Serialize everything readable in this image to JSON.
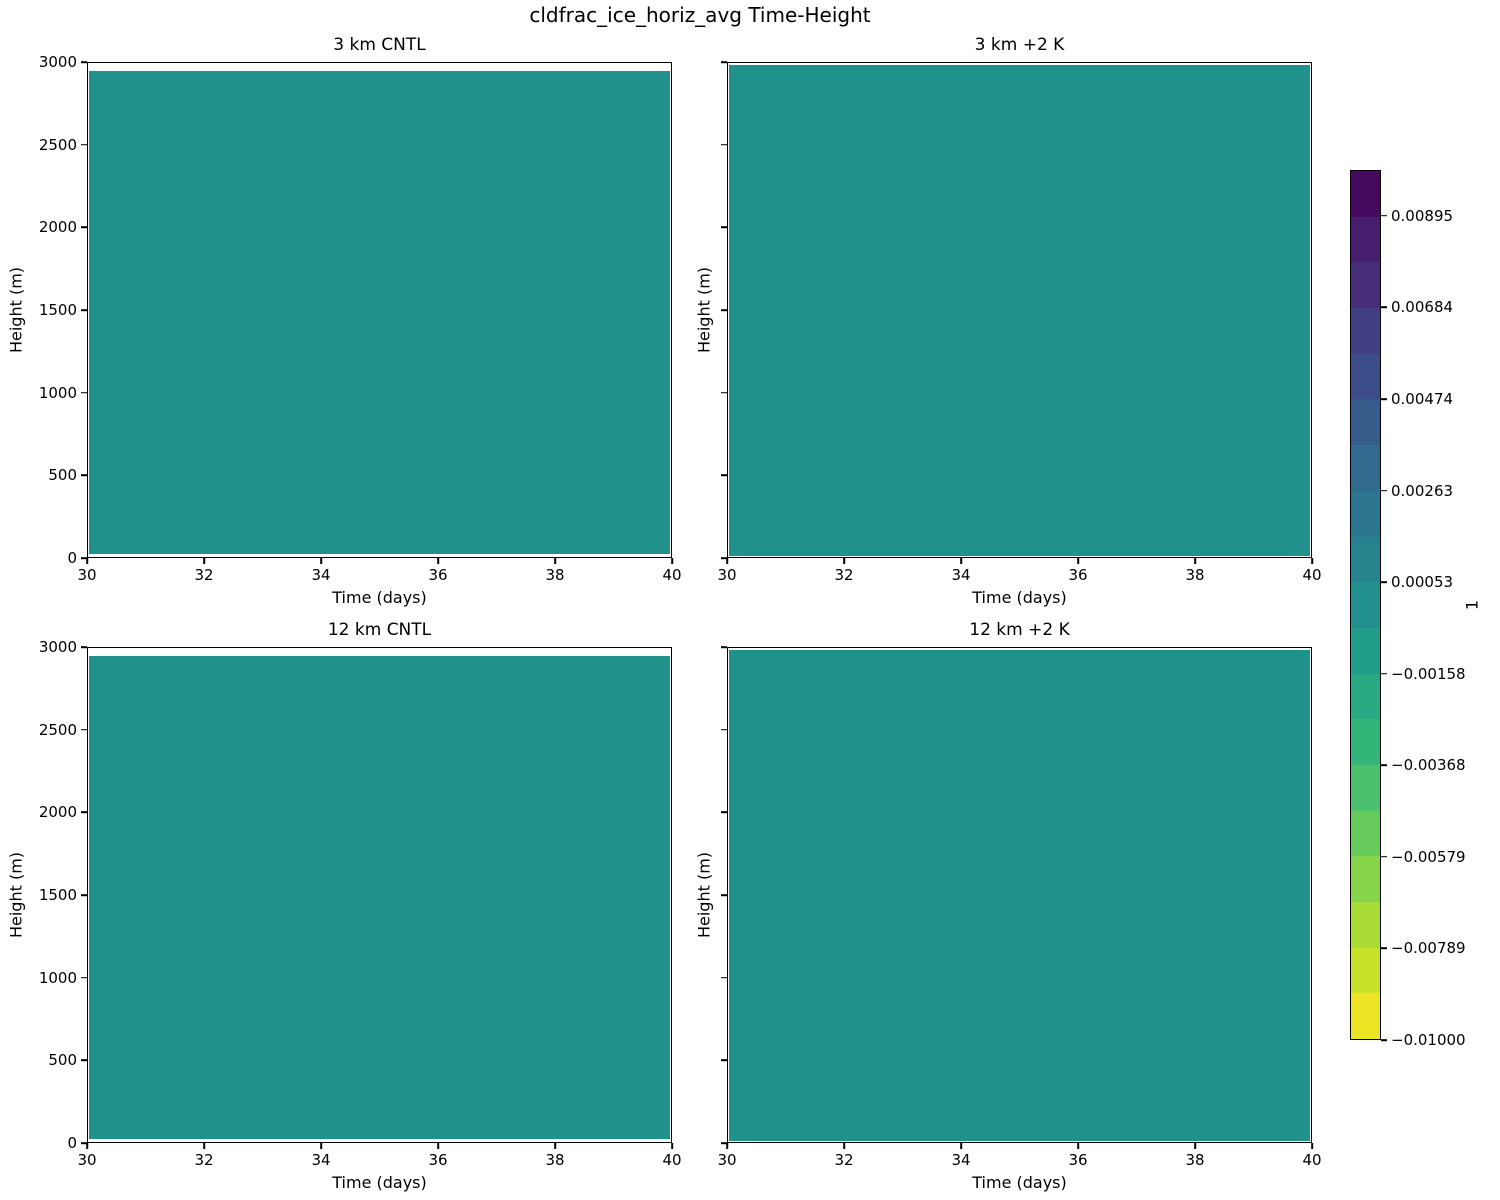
{
  "figure": {
    "title": "cldfrac_ice_horiz_avg Time-Height",
    "background_color": "#ffffff",
    "text_color": "#000000",
    "fill_color": "#21918c"
  },
  "subplots": [
    {
      "title": "3 km CNTL"
    },
    {
      "title": "3 km +2 K"
    },
    {
      "title": "12 km CNTL"
    },
    {
      "title": "12 km +2 K"
    }
  ],
  "axes": {
    "xlabel": "Time (days)",
    "ylabel": "Height (m)",
    "xtick_labels": [
      "30",
      "32",
      "34",
      "36",
      "38",
      "40"
    ],
    "ytick_labels": [
      "0",
      "500",
      "1000",
      "1500",
      "2000",
      "2500",
      "3000"
    ]
  },
  "colorbar": {
    "unit_label": "1",
    "tick_labels": [
      "0.00895",
      "0.00684",
      "0.00474",
      "0.00263",
      "0.00053",
      "−0.00158",
      "−0.00368",
      "−0.00579",
      "−0.00789",
      "−0.01000"
    ],
    "band_colors_top_to_bottom": [
      "#450a5d",
      "#471d6e",
      "#462e7b",
      "#413e83",
      "#3c4d8a",
      "#365c8c",
      "#306a8e",
      "#2b768e",
      "#26838e",
      "#22908c",
      "#1f9d89",
      "#29a982",
      "#33b57a",
      "#4cc06c",
      "#67cb5c",
      "#86d449",
      "#a8db33",
      "#cae129",
      "#ece526"
    ]
  },
  "chart_data": {
    "type": "heatmap",
    "title": "cldfrac_ice_horiz_avg Time-Height",
    "layout": "2x2 panel grid of time-height filled contour plots sharing axes, colorbar at right",
    "panels": [
      {
        "title": "3 km CNTL",
        "uniform_value": 0.0
      },
      {
        "title": "3 km +2 K",
        "uniform_value": 0.0
      },
      {
        "title": "12 km CNTL",
        "uniform_value": 0.0
      },
      {
        "title": "12 km +2 K",
        "uniform_value": 0.0
      }
    ],
    "x": {
      "label": "Time (days)",
      "range": [
        30,
        40
      ],
      "ticks": [
        30,
        32,
        34,
        36,
        38,
        40
      ]
    },
    "y": {
      "label": "Height (m)",
      "range": [
        0,
        3000
      ],
      "ticks": [
        0,
        500,
        1000,
        1500,
        2000,
        2500,
        3000
      ]
    },
    "colorbar": {
      "label": "1",
      "range": [
        -0.01,
        0.01
      ],
      "tick_values": [
        0.00895,
        0.00684,
        0.00474,
        0.00263,
        0.00053,
        -0.00158,
        -0.00368,
        -0.00579,
        -0.00789,
        -0.01
      ],
      "n_bands": 19,
      "colormap": "viridis (high values dark purple at top, low values yellow at bottom)"
    },
    "note": "All four panels display a uniform field of approximately 0 (teal band between −0.00053 and 0.00053); thin white margins appear at the top/bottom edges of each filled region.",
    "grid": false,
    "legend": false
  }
}
